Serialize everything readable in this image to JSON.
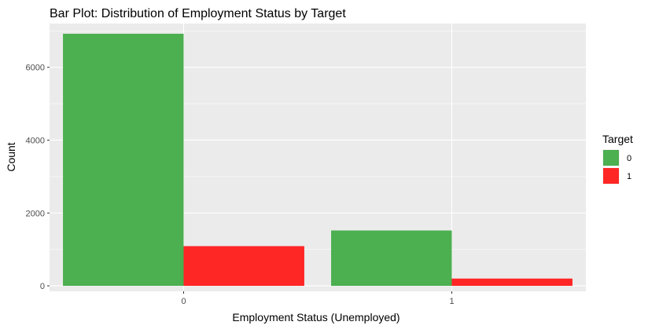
{
  "chart_data": {
    "type": "bar",
    "title": "Bar Plot: Distribution of Employment Status by Target",
    "xlabel": "Employment Status (Unemployed)",
    "ylabel": "Count",
    "categories": [
      "0",
      "1"
    ],
    "series": [
      {
        "name": "0",
        "color": "#4CAF50",
        "values": [
          6920,
          1520
        ]
      },
      {
        "name": "1",
        "color": "#FF2626",
        "values": [
          1090,
          200
        ]
      }
    ],
    "ylim": [
      -150,
      7200
    ],
    "yticks": [
      0,
      2000,
      4000,
      6000
    ],
    "legend": {
      "title": "Target",
      "position": "right"
    },
    "grid": true,
    "panel_background": "#EBEBEB",
    "grid_color": "#FFFFFF"
  }
}
